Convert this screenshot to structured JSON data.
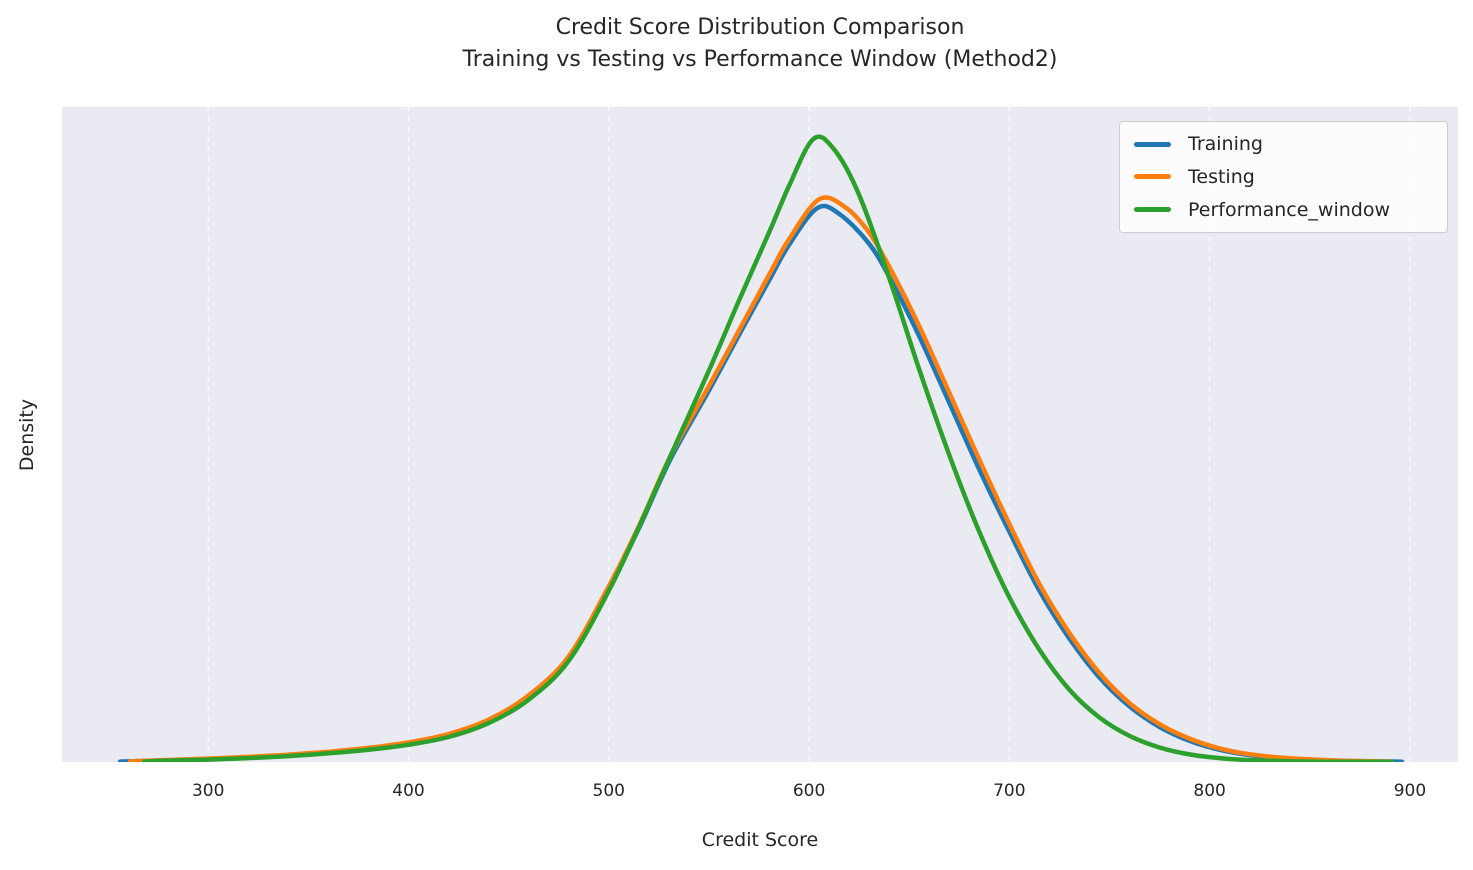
{
  "chart_data": {
    "type": "line",
    "subtype": "kde-density",
    "title": "Credit Score Distribution Comparison Training vs Testing vs Performance Window (Method2)",
    "title_line1": "Credit Score Distribution Comparison",
    "title_line2": "Training vs Testing vs Performance Window (Method2)",
    "xlabel": "Credit Score",
    "ylabel": "Density",
    "x_ticks": [
      300,
      400,
      500,
      600,
      700,
      800,
      900
    ],
    "y_ticks": [],
    "xlim": [
      227,
      924
    ],
    "ylim": [
      0,
      0.00589
    ],
    "grid": "vertical-dashed-white",
    "legend_position": "upper right",
    "style": {
      "plot_background": "#eaeaf2",
      "figure_background": "#ffffff",
      "grid_color": "#ffffff",
      "text_color": "#262626",
      "line_width": 4.5
    },
    "series": [
      {
        "name": "Training",
        "color": "#1f77b4",
        "points": [
          [
            256,
            4e-06
          ],
          [
            265,
            8e-06
          ],
          [
            280,
            1.6e-05
          ],
          [
            300,
            2.8e-05
          ],
          [
            320,
            4.3e-05
          ],
          [
            340,
            6.2e-05
          ],
          [
            360,
            8.8e-05
          ],
          [
            380,
            0.000122
          ],
          [
            400,
            0.00017
          ],
          [
            420,
            0.000245
          ],
          [
            440,
            0.00037
          ],
          [
            460,
            0.00059
          ],
          [
            480,
            0.00094
          ],
          [
            500,
            0.00156
          ],
          [
            515,
            0.0021
          ],
          [
            531,
            0.00273
          ],
          [
            550,
            0.00334
          ],
          [
            565,
            0.00384
          ],
          [
            580,
            0.00433
          ],
          [
            590,
            0.00465
          ],
          [
            604,
            0.00498
          ],
          [
            615,
            0.00493
          ],
          [
            630,
            0.00466
          ],
          [
            641,
            0.00433
          ],
          [
            655,
            0.00383
          ],
          [
            670,
            0.00323
          ],
          [
            685,
            0.00263
          ],
          [
            700,
            0.00207
          ],
          [
            715,
            0.00154
          ],
          [
            730,
            0.00111
          ],
          [
            745,
            0.00076
          ],
          [
            760,
            0.0005
          ],
          [
            775,
            0.000315
          ],
          [
            790,
            0.00019
          ],
          [
            805,
            0.00011
          ],
          [
            820,
            6.2e-05
          ],
          [
            840,
            2.8e-05
          ],
          [
            860,
            1.3e-05
          ],
          [
            880,
            6e-06
          ],
          [
            896,
            3e-06
          ]
        ]
      },
      {
        "name": "Testing",
        "color": "#ff7f0e",
        "points": [
          [
            261,
            5e-06
          ],
          [
            280,
            1.8e-05
          ],
          [
            300,
            3.1e-05
          ],
          [
            320,
            4.6e-05
          ],
          [
            340,
            6.6e-05
          ],
          [
            360,
            9.2e-05
          ],
          [
            380,
            0.000127
          ],
          [
            400,
            0.000176
          ],
          [
            420,
            0.000252
          ],
          [
            440,
            0.00038
          ],
          [
            460,
            0.0006
          ],
          [
            480,
            0.00095
          ],
          [
            500,
            0.00158
          ],
          [
            515,
            0.00212
          ],
          [
            531,
            0.00276
          ],
          [
            550,
            0.00338
          ],
          [
            565,
            0.00388
          ],
          [
            580,
            0.00438
          ],
          [
            590,
            0.0047
          ],
          [
            605,
            0.00506
          ],
          [
            618,
            0.00499
          ],
          [
            630,
            0.00476
          ],
          [
            641,
            0.00442
          ],
          [
            655,
            0.00392
          ],
          [
            670,
            0.00332
          ],
          [
            685,
            0.00272
          ],
          [
            700,
            0.00214
          ],
          [
            715,
            0.0016
          ],
          [
            730,
            0.00116
          ],
          [
            745,
            0.0008
          ],
          [
            760,
            0.00053
          ],
          [
            775,
            0.00034
          ],
          [
            790,
            0.00021
          ],
          [
            805,
            0.000122
          ],
          [
            820,
            7e-05
          ],
          [
            840,
            3.3e-05
          ],
          [
            860,
            1.6e-05
          ],
          [
            880,
            7e-06
          ],
          [
            890,
            4e-06
          ]
        ]
      },
      {
        "name": "Performance_window",
        "color": "#2ca02c",
        "points": [
          [
            268,
            4e-06
          ],
          [
            280,
            1.3e-05
          ],
          [
            300,
            2.2e-05
          ],
          [
            320,
            3.5e-05
          ],
          [
            340,
            5.3e-05
          ],
          [
            360,
            7.8e-05
          ],
          [
            380,
            0.00011
          ],
          [
            400,
            0.000155
          ],
          [
            420,
            0.000225
          ],
          [
            440,
            0.00035
          ],
          [
            460,
            0.00056
          ],
          [
            480,
            0.00091
          ],
          [
            500,
            0.00154
          ],
          [
            515,
            0.00211
          ],
          [
            531,
            0.00276
          ],
          [
            550,
            0.00352
          ],
          [
            565,
            0.00415
          ],
          [
            580,
            0.00476
          ],
          [
            590,
            0.00518
          ],
          [
            602,
            0.0056
          ],
          [
            612,
            0.00552
          ],
          [
            625,
            0.0051
          ],
          [
            641,
            0.0043
          ],
          [
            655,
            0.00353
          ],
          [
            670,
            0.00276
          ],
          [
            685,
            0.00207
          ],
          [
            700,
            0.00148
          ],
          [
            715,
            0.00101
          ],
          [
            730,
            0.00065
          ],
          [
            745,
            0.0004
          ],
          [
            760,
            0.000235
          ],
          [
            775,
            0.00013
          ],
          [
            790,
            6.8e-05
          ],
          [
            805,
            3.5e-05
          ],
          [
            820,
            1.7e-05
          ],
          [
            840,
            7e-06
          ],
          [
            860,
            3e-06
          ],
          [
            880,
            2e-06
          ],
          [
            891,
            1e-06
          ]
        ]
      }
    ]
  }
}
